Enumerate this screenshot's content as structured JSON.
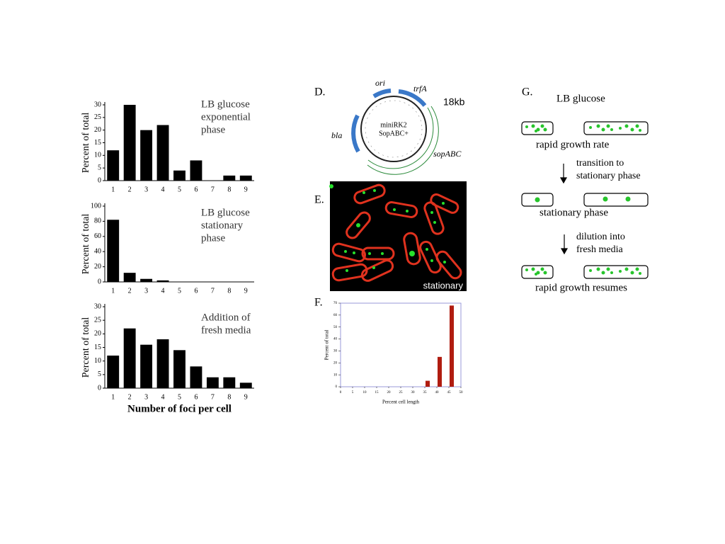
{
  "chart_data": [
    {
      "type": "bar",
      "ylabel": "Percent of total",
      "annotation": [
        "LB glucose",
        "exponential",
        "phase"
      ],
      "categories": [
        "1",
        "2",
        "3",
        "4",
        "5",
        "6",
        "7",
        "8",
        "9"
      ],
      "values": [
        12,
        30,
        20,
        22,
        4,
        8,
        0,
        2,
        2
      ],
      "color": "#000000",
      "ylim": [
        0,
        30
      ],
      "yticks": [
        0,
        5,
        10,
        15,
        20,
        25,
        30
      ]
    },
    {
      "type": "bar",
      "ylabel": "Percent of total",
      "annotation": [
        "LB glucose",
        "stationary",
        "phase"
      ],
      "categories": [
        "1",
        "2",
        "3",
        "4",
        "5",
        "6",
        "7",
        "8",
        "9"
      ],
      "values": [
        82,
        12,
        4,
        2,
        0,
        0,
        0,
        0,
        0
      ],
      "color": "#000000",
      "ylim": [
        0,
        100
      ],
      "yticks": [
        0,
        20,
        40,
        60,
        80,
        100
      ]
    },
    {
      "type": "bar",
      "ylabel": "Percent of total",
      "xlabel": "Number of foci per cell",
      "annotation": [
        "Addition of",
        "fresh media"
      ],
      "categories": [
        "1",
        "2",
        "3",
        "4",
        "5",
        "6",
        "7",
        "8",
        "9"
      ],
      "values": [
        12,
        22,
        16,
        18,
        14,
        8,
        4,
        4,
        2
      ],
      "color": "#000000",
      "ylim": [
        0,
        30
      ],
      "yticks": [
        0,
        5,
        10,
        15,
        20,
        25,
        30
      ]
    },
    {
      "type": "bar",
      "ylabel": "Percent of total",
      "xlabel": "Percent cell length",
      "x": [
        35,
        40,
        45
      ],
      "values": [
        5,
        25,
        68
      ],
      "color": "#b01c10",
      "xlim": [
        0,
        50
      ],
      "xticks": [
        0,
        5,
        10,
        15,
        20,
        25,
        30,
        35,
        40,
        45,
        50
      ],
      "ylim": [
        0,
        70
      ],
      "yticks": [
        0,
        10,
        20,
        30,
        40,
        50,
        60,
        70
      ]
    }
  ],
  "panel_d": {
    "label": "D.",
    "plasmid": [
      "miniRK2",
      "SopABC+"
    ],
    "genes": [
      "ori",
      "trfA",
      "bla",
      "sopABC"
    ],
    "size": "18kb"
  },
  "panel_e": {
    "label": "E.",
    "caption": "stationary"
  },
  "panel_f": {
    "label": "F."
  },
  "panel_g": {
    "label": "G.",
    "condition": "LB glucose",
    "steps": [
      "rapid growth rate",
      "stationary phase",
      "rapid growth resumes"
    ],
    "transitions": [
      [
        "transition to",
        "stationary phase"
      ],
      [
        "dilution into",
        "fresh media"
      ]
    ]
  }
}
